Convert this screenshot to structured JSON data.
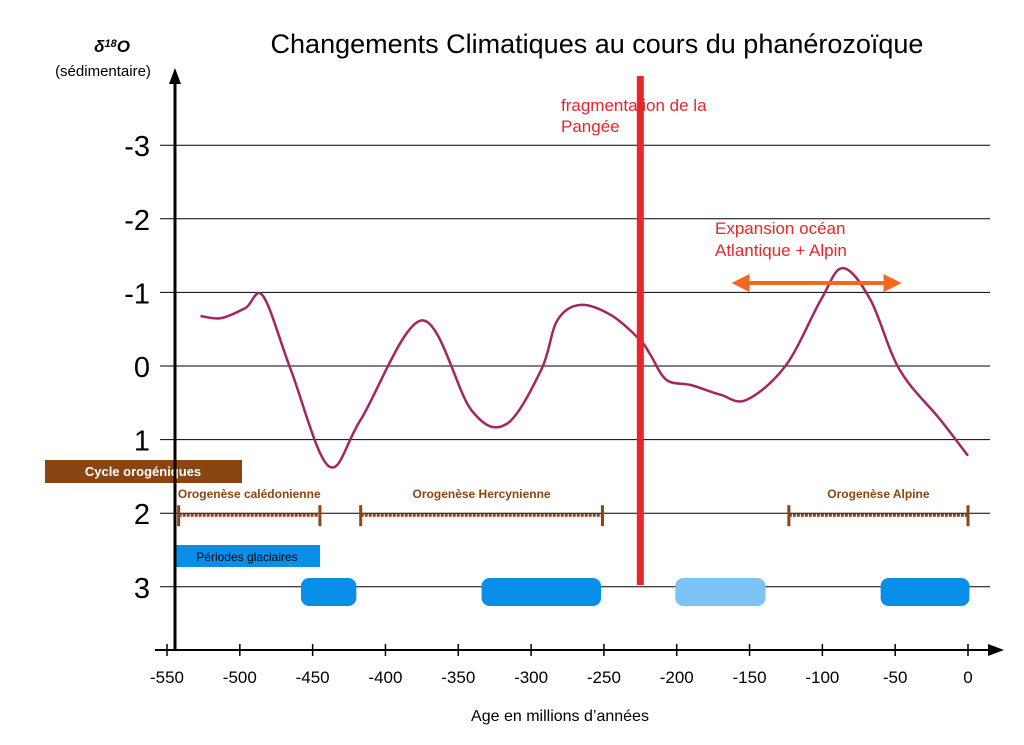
{
  "chart_data": {
    "type": "line",
    "title": "Changements Climatiques au cours du phanérozoïque",
    "ylabel": "δ18O",
    "ylabel_sup": "18",
    "ylabel_pre": "δ",
    "ylabel_post": "O",
    "ylabel_sub": "(sédimentaire)",
    "xlabel": "Age en millions d’années",
    "xlim": [
      -550,
      0
    ],
    "ylim": [
      -3,
      3
    ],
    "y_inverted": true,
    "xticks": [
      -550,
      -500,
      -450,
      -400,
      -350,
      -300,
      -250,
      -200,
      -150,
      -100,
      -50,
      0
    ],
    "yticks": [
      -3,
      -2,
      -1,
      0,
      1,
      2,
      3
    ],
    "grid": "horizontal",
    "series": [
      {
        "name": "δ18O",
        "color": "#a3275e",
        "x": [
          -527,
          -513,
          -496,
          -484,
          -465,
          -439,
          -417,
          -375,
          -341,
          -317,
          -293,
          -282,
          -266,
          -245,
          -225,
          -218,
          -207,
          -190,
          -170,
          -152,
          -125,
          -101,
          -86,
          -67,
          -47,
          -19,
          0
        ],
        "y": [
          -0.68,
          -0.65,
          -0.79,
          -0.95,
          0.05,
          1.36,
          0.73,
          -0.62,
          0.6,
          0.79,
          0.05,
          -0.62,
          -0.83,
          -0.69,
          -0.35,
          -0.15,
          0.19,
          0.26,
          0.39,
          0.46,
          -0.01,
          -0.9,
          -1.33,
          -0.9,
          0.05,
          0.73,
          1.22
        ]
      }
    ],
    "event_line": {
      "x": -225,
      "label_line1": "fragmentation de la",
      "label_line2": "Pangée",
      "color": "#e8262a"
    },
    "arrow": {
      "from": -161,
      "to": -47,
      "y": -1.1,
      "label_line1": "Expansion océan",
      "label_line2": "Atlantique + Alpin",
      "color": "#f26a21"
    },
    "orogeny_legend": {
      "label": "Cycle orogéniques",
      "color": "#8b4513"
    },
    "orogenies": [
      {
        "name": "Orogenèse calédonienne",
        "start": -542,
        "end": -445
      },
      {
        "name": "Orogenèse Hercynienne",
        "start": -417,
        "end": -251
      },
      {
        "name": "Orogenèse Alpine",
        "start": -123,
        "end": 0
      }
    ],
    "glacial_legend": {
      "label": "Périodes glaciaires",
      "color": "#0a8fe8"
    },
    "glacial_periods": [
      {
        "start": -458,
        "end": -420,
        "color": "#0a8fe8"
      },
      {
        "start": -334,
        "end": -252,
        "color": "#0a8fe8"
      },
      {
        "start": -201,
        "end": -139,
        "color": "#7cc4f5"
      },
      {
        "start": -60,
        "end": 1,
        "color": "#0a8fe8"
      }
    ]
  }
}
